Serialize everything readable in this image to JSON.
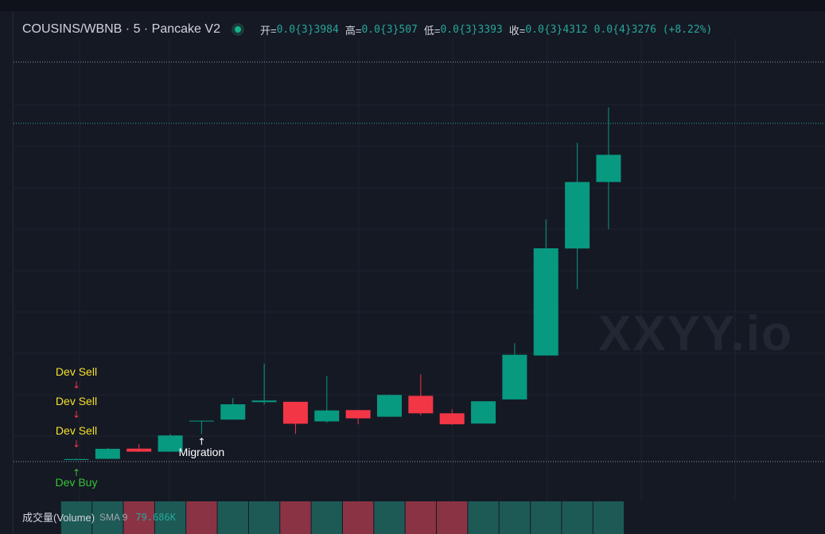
{
  "header": {
    "title": "COUSINS/WBNB · 5 · Pancake V2",
    "open_label": "开=",
    "open_value": "0.0{3}3984",
    "high_label": "高=",
    "high_value": "0.0{3}507",
    "low_label": "低=",
    "low_value": "0.0{3}3393",
    "close_label": "收=",
    "close_value": "0.0{3}4312",
    "change_value": "0.0{4}3276 (+8.22%)"
  },
  "watermark": "XXYY.io",
  "volume_legend": {
    "title": "成交量(Volume)",
    "sma_label": "SMA 9",
    "sma_value": "79.686K"
  },
  "colors": {
    "background": "#151924",
    "up": "#089981",
    "down": "#f23645",
    "grid": "#1f2330",
    "vol_up": "#1d5a55",
    "vol_down": "#8a3345",
    "dev_sell": "#f5e12b",
    "dev_buy": "#35c435"
  },
  "chart_data": {
    "type": "candlestick",
    "candles": [
      {
        "open": 0.0,
        "high": 0.08,
        "low": 0.0,
        "close": 0.05
      },
      {
        "open": 0.06,
        "high": 0.67,
        "low": 0.06,
        "close": 0.62
      },
      {
        "open": 0.63,
        "high": 0.88,
        "low": 0.45,
        "close": 0.46
      },
      {
        "open": 0.46,
        "high": 1.44,
        "low": 0.46,
        "close": 1.36
      },
      {
        "open": 2.18,
        "high": 2.18,
        "low": 1.44,
        "close": 2.18
      },
      {
        "open": 2.24,
        "high": 3.44,
        "low": 2.24,
        "close": 3.09
      },
      {
        "open": 3.21,
        "high": 5.35,
        "low": 3.07,
        "close": 3.3
      },
      {
        "open": 3.23,
        "high": 3.23,
        "low": 1.45,
        "close": 2.01
      },
      {
        "open": 2.14,
        "high": 4.66,
        "low": 2.06,
        "close": 2.75
      },
      {
        "open": 2.77,
        "high": 2.77,
        "low": 1.98,
        "close": 2.31
      },
      {
        "open": 2.4,
        "high": 3.63,
        "low": 2.4,
        "close": 3.61
      },
      {
        "open": 3.56,
        "high": 4.75,
        "low": 2.47,
        "close": 2.59
      },
      {
        "open": 2.59,
        "high": 2.81,
        "low": 1.95,
        "close": 1.98
      },
      {
        "open": 2.02,
        "high": 3.27,
        "low": 2.02,
        "close": 3.26
      },
      {
        "open": 3.36,
        "high": 6.48,
        "low": 3.36,
        "close": 5.84
      },
      {
        "open": 5.8,
        "high": 13.35,
        "low": 5.8,
        "close": 11.75
      },
      {
        "open": 11.74,
        "high": 17.61,
        "low": 9.48,
        "close": 15.43
      },
      {
        "open": 15.43,
        "high": 19.57,
        "low": 12.81,
        "close": 16.94
      }
    ],
    "volumes": [
      {
        "value": 90,
        "direction": "up"
      },
      {
        "value": 90,
        "direction": "up"
      },
      {
        "value": 90,
        "direction": "down"
      },
      {
        "value": 90,
        "direction": "up"
      },
      {
        "value": 90,
        "direction": "down"
      },
      {
        "value": 90,
        "direction": "up"
      },
      {
        "value": 90,
        "direction": "up"
      },
      {
        "value": 90,
        "direction": "down"
      },
      {
        "value": 90,
        "direction": "up"
      },
      {
        "value": 90,
        "direction": "down"
      },
      {
        "value": 90,
        "direction": "up"
      },
      {
        "value": 90,
        "direction": "down"
      },
      {
        "value": 90,
        "direction": "down"
      },
      {
        "value": 90,
        "direction": "up"
      },
      {
        "value": 90,
        "direction": "up"
      },
      {
        "value": 90,
        "direction": "up"
      },
      {
        "value": 90,
        "direction": "up"
      },
      {
        "value": 90,
        "direction": "up"
      }
    ],
    "annotations": [
      {
        "candle": 0,
        "text": "Dev Sell",
        "arrow": "↓",
        "kind": "sell",
        "slot": 0
      },
      {
        "candle": 0,
        "text": "Dev Sell",
        "arrow": "↓",
        "kind": "sell",
        "slot": 1
      },
      {
        "candle": 0,
        "text": "Dev Sell",
        "arrow": "↓",
        "kind": "sell",
        "slot": 2
      },
      {
        "candle": 0,
        "text": "Dev Buy",
        "arrow": "↑",
        "kind": "buy",
        "slot": 0
      },
      {
        "candle": 4,
        "text": "Migration",
        "arrow": "↑",
        "kind": "migration",
        "slot": 0
      }
    ],
    "ylim": [
      -0.09,
      22.0
    ],
    "grid": true
  }
}
